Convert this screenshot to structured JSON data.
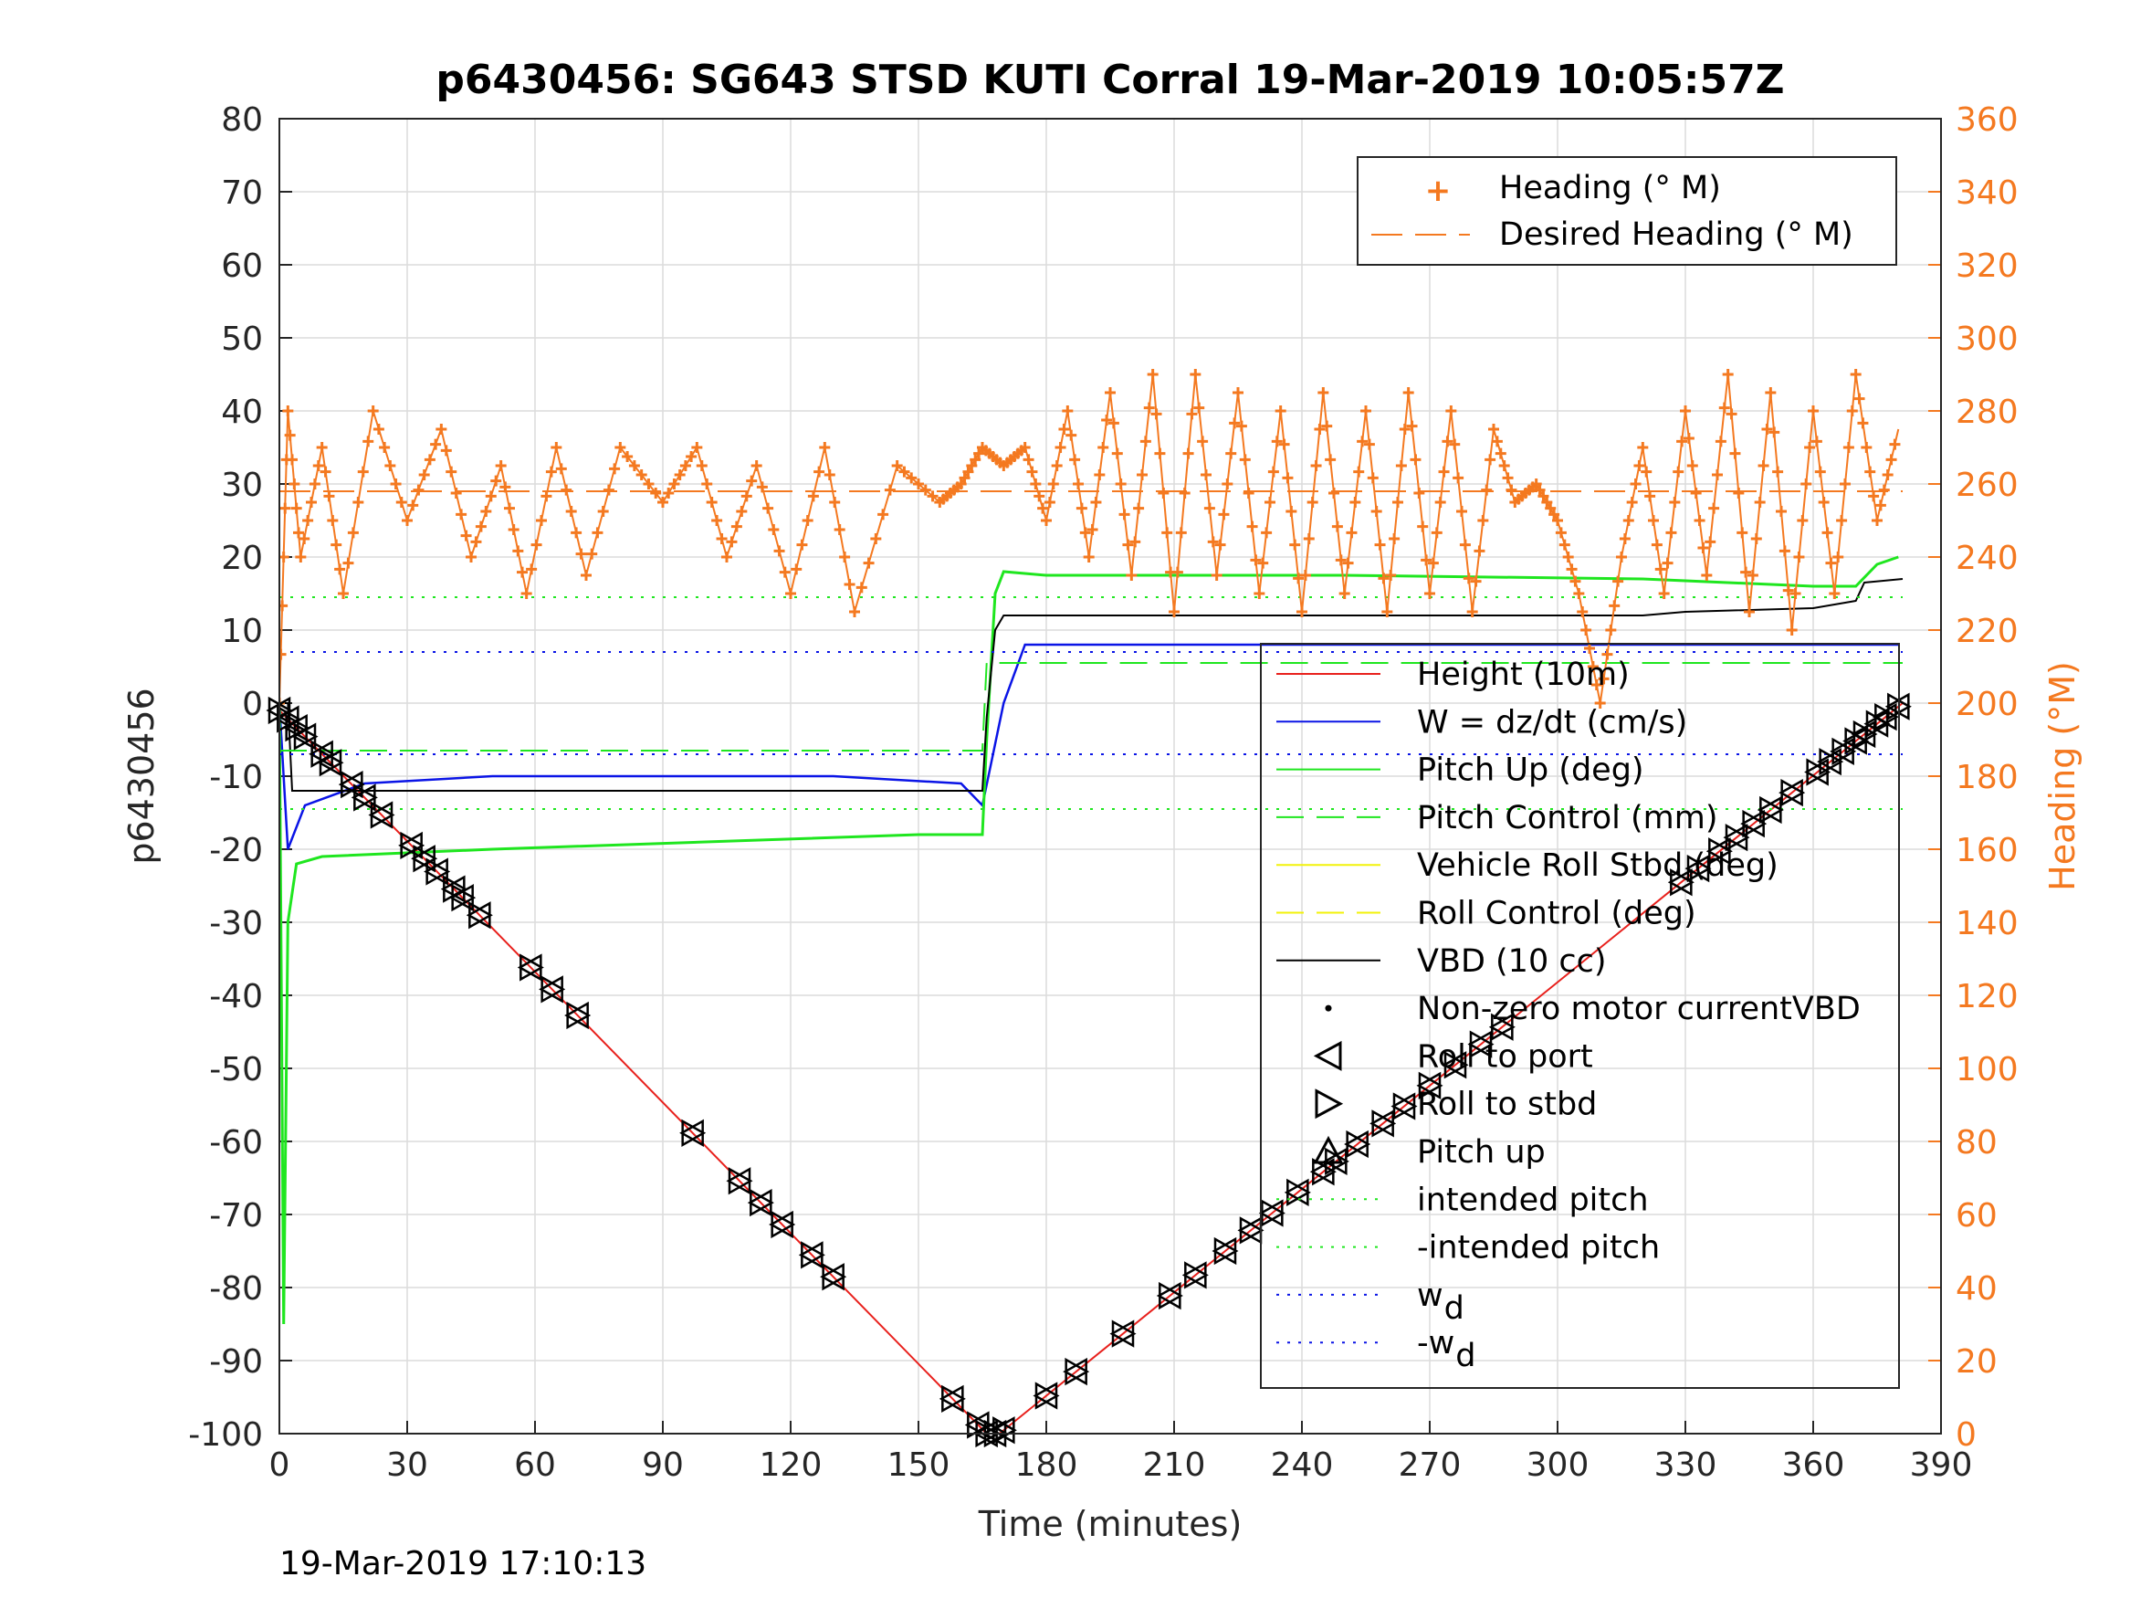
{
  "colors": {
    "heading": "#f47920",
    "height": "#e8201c",
    "w": "#0a14e6",
    "pitch": "#1fe61f",
    "roll": "#f2f20a",
    "vbd": "#000000",
    "grid": "#dcdcdc"
  },
  "footer": {
    "timestamp": "19-Mar-2019 17:10:13"
  },
  "chart_data": {
    "type": "line",
    "title": "p6430456: SG643 STSD KUTI Corral 19-Mar-2019 10:05:57Z",
    "xlabel": "Time (minutes)",
    "ylabel": "p6430456",
    "ylabel_right": "Heading (°M)",
    "xlim": [
      0,
      390
    ],
    "ylim": [
      -100,
      80
    ],
    "ylim_right": [
      0,
      360
    ],
    "xticks": [
      0,
      30,
      60,
      90,
      120,
      150,
      180,
      210,
      240,
      270,
      300,
      330,
      360,
      390
    ],
    "yticks": [
      -100,
      -90,
      -80,
      -70,
      -60,
      -50,
      -40,
      -30,
      -20,
      -10,
      0,
      10,
      20,
      30,
      40,
      50,
      60,
      70,
      80
    ],
    "yticks_right": [
      0,
      20,
      40,
      60,
      80,
      100,
      120,
      140,
      160,
      180,
      200,
      220,
      240,
      260,
      280,
      300,
      320,
      340,
      360
    ],
    "grid": true,
    "legend_top": {
      "placement": "top-right",
      "entries": [
        "Heading (° M)",
        "Desired Heading (° M)"
      ]
    },
    "legend_main": {
      "placement": "right",
      "entries": [
        {
          "label": "Height (10m)",
          "sub": ""
        },
        {
          "label": "W = dz/dt (cm/s)",
          "sub": ""
        },
        {
          "label": "Pitch Up (deg)",
          "sub": ""
        },
        {
          "label": "Pitch Control (mm)",
          "sub": ""
        },
        {
          "label": "Vehicle Roll Stbd (deg)",
          "sub": ""
        },
        {
          "label": "Roll Control (deg)",
          "sub": ""
        },
        {
          "label": "VBD (10 cc)",
          "sub": ""
        },
        {
          "label": "Non-zero motor currentVBD",
          "sub": ""
        },
        {
          "label": "Roll to port",
          "sub": ""
        },
        {
          "label": "Roll to stbd",
          "sub": ""
        },
        {
          "label": "Pitch up",
          "sub": ""
        },
        {
          "label": "intended pitch",
          "sub": ""
        },
        {
          "label": "-intended pitch",
          "sub": ""
        },
        {
          "label": "w",
          "sub": "d"
        },
        {
          "label": "-w",
          "sub": "d"
        }
      ]
    },
    "series": [
      {
        "name": "Height (10m)",
        "axis": "left",
        "x": [
          0,
          166,
          169,
          381
        ],
        "y": [
          -1,
          -100,
          -100,
          0
        ]
      },
      {
        "name": "W = dz/dt (cm/s)",
        "axis": "left",
        "x": [
          0,
          2,
          6,
          20,
          50,
          100,
          130,
          160,
          165,
          170,
          175,
          200,
          250,
          300,
          380
        ],
        "y": [
          0,
          -20,
          -14,
          -11,
          -10,
          -10,
          -10,
          -11,
          -14,
          0,
          8,
          8,
          8,
          8,
          8
        ]
      },
      {
        "name": "Pitch Up (deg)",
        "axis": "left",
        "x": [
          0,
          1,
          2,
          4,
          10,
          50,
          100,
          150,
          165,
          166,
          168,
          170,
          180,
          250,
          320,
          360,
          370,
          375,
          380
        ],
        "y": [
          0,
          -85,
          -30,
          -22,
          -21,
          -20,
          -19,
          -18,
          -18,
          -5,
          15,
          18,
          17.5,
          17.5,
          17,
          16,
          16,
          19,
          20
        ]
      },
      {
        "name": "VBD (10 cc)",
        "axis": "left",
        "x": [
          0,
          2,
          3,
          165,
          166,
          168,
          170,
          320,
          330,
          360,
          370,
          372,
          381
        ],
        "y": [
          0,
          0,
          -12,
          -12,
          -2,
          10,
          12,
          12,
          12.5,
          13,
          14,
          16.5,
          17
        ]
      },
      {
        "name": "intended pitch",
        "axis": "left",
        "x": [
          0,
          381
        ],
        "y": [
          14.5,
          14.5
        ]
      },
      {
        "name": "-intended pitch",
        "axis": "left",
        "x": [
          0,
          381
        ],
        "y": [
          -14.5,
          -14.5
        ]
      },
      {
        "name": "w_d",
        "axis": "left",
        "x": [
          0,
          381
        ],
        "y": [
          7,
          7
        ]
      },
      {
        "name": "-w_d",
        "axis": "left",
        "x": [
          0,
          381
        ],
        "y": [
          -7,
          -7
        ]
      },
      {
        "name": "Pitch Control (mm)",
        "axis": "left",
        "x": [
          0,
          165,
          166,
          381
        ],
        "y": [
          -6.5,
          -6.5,
          5.5,
          5.5
        ]
      },
      {
        "name": "Heading (° M)",
        "axis": "right",
        "x": [
          0,
          2,
          5,
          10,
          15,
          22,
          30,
          38,
          45,
          52,
          58,
          65,
          72,
          80,
          90,
          98,
          105,
          112,
          120,
          128,
          135,
          145,
          155,
          160,
          165,
          170,
          175,
          180,
          185,
          190,
          195,
          200,
          205,
          210,
          215,
          220,
          225,
          230,
          235,
          240,
          245,
          250,
          255,
          260,
          265,
          270,
          275,
          280,
          285,
          290,
          295,
          300,
          305,
          310,
          315,
          320,
          325,
          330,
          335,
          340,
          345,
          350,
          355,
          360,
          365,
          370,
          375,
          380
        ],
        "y": [
          200,
          280,
          240,
          270,
          230,
          280,
          250,
          275,
          240,
          265,
          230,
          270,
          235,
          270,
          255,
          270,
          240,
          265,
          230,
          270,
          225,
          265,
          255,
          260,
          270,
          265,
          270,
          250,
          280,
          240,
          285,
          235,
          290,
          225,
          290,
          235,
          285,
          230,
          280,
          225,
          285,
          230,
          280,
          225,
          285,
          230,
          280,
          225,
          275,
          255,
          260,
          250,
          230,
          200,
          240,
          270,
          230,
          280,
          235,
          290,
          225,
          285,
          220,
          280,
          230,
          290,
          250,
          275
        ]
      },
      {
        "name": "Desired Heading (° M)",
        "axis": "right",
        "x": [
          0,
          381
        ],
        "y": [
          258,
          258
        ]
      }
    ],
    "markers": {
      "roll_to_port": "triangle-left",
      "roll_to_stbd": "triangle-right",
      "pitch_up": "triangle-up",
      "times": [
        0,
        2,
        4,
        6,
        10,
        12,
        17,
        20,
        24,
        31,
        34,
        37,
        41,
        43,
        47,
        59,
        64,
        70,
        97,
        108,
        113,
        118,
        125,
        130,
        158,
        164,
        166,
        168,
        170,
        180,
        187,
        198,
        209,
        215,
        222,
        228,
        233,
        239,
        245,
        248,
        253,
        259,
        264,
        270,
        276,
        282,
        287,
        329,
        333,
        338,
        342,
        346,
        350,
        355,
        361,
        364,
        367,
        370,
        372,
        375,
        377,
        380
      ]
    }
  }
}
